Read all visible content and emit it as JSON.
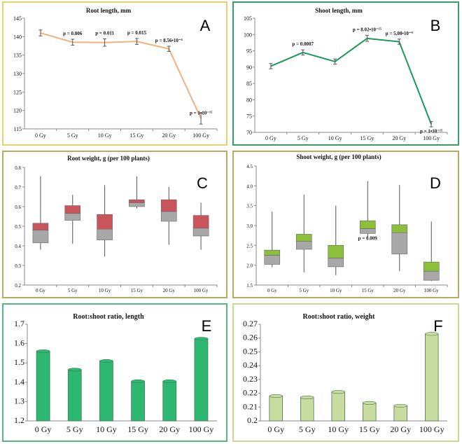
{
  "colors": {
    "root_line": "#f2b27c",
    "shoot_line": "#1a9a5a",
    "root_box_upper": "#c9545a",
    "shoot_box_upper": "#8cbf3a",
    "box_lower": "#a8a8a8",
    "bar_green": "#2db872",
    "bar_lightgreen": "#c9dca0"
  },
  "chart_data": [
    {
      "id": "A",
      "type": "line",
      "panel_letter": "A",
      "title": "Root length, mm",
      "categories": [
        "0 Gy",
        "5 Gy",
        "10 Gy",
        "15 Gy",
        "20 Gy",
        "100 Gy"
      ],
      "values": [
        141,
        138.5,
        138.4,
        138.7,
        136.7,
        117.8
      ],
      "errors": [
        0.8,
        0.8,
        1.0,
        0.8,
        0.7,
        1.5
      ],
      "ylim": [
        115,
        145
      ],
      "yticks": [
        "115",
        "120",
        "125",
        "130",
        "135",
        "140",
        "145"
      ],
      "annotations": [
        {
          "cat": 1,
          "label": "p = 0.006"
        },
        {
          "cat": 2,
          "label": "p = 0.011"
        },
        {
          "cat": 3,
          "label": "p = 0.015"
        },
        {
          "cat": 4,
          "label": "p = 8.56•10⁻⁶"
        },
        {
          "cat": 5,
          "label": "p = 1•10⁻¹⁵"
        }
      ]
    },
    {
      "id": "B",
      "type": "line",
      "panel_letter": "B",
      "title": "Shoot length, mm",
      "categories": [
        "0 Gy",
        "5 Gy",
        "10 Gy",
        "15 Gy",
        "20 Gy",
        "100 Gy"
      ],
      "values": [
        90.3,
        94.5,
        91.7,
        98.8,
        97.8,
        72.5
      ],
      "errors": [
        0.8,
        0.8,
        0.8,
        0.9,
        0.8,
        0.8
      ],
      "ylim": [
        70,
        105
      ],
      "yticks": [
        "70",
        "75",
        "80",
        "85",
        "90",
        "95",
        "100",
        "105"
      ],
      "annotations": [
        {
          "cat": 1,
          "label": "p = 0.0007"
        },
        {
          "cat": 3,
          "label": "p = 8.02•10⁻¹⁵"
        },
        {
          "cat": 4,
          "label": "p = 5.08•10⁻⁹"
        },
        {
          "cat": 5,
          "label": "p = 1•10⁻¹⁵"
        }
      ]
    },
    {
      "id": "C",
      "type": "box",
      "panel_letter": "C",
      "title": "Root weight, g (per 100 plants)",
      "categories": [
        "0 Gy",
        "5 Gy",
        "10 Gy",
        "15 Gy",
        "20 Gy",
        "100 Gy"
      ],
      "boxes": [
        {
          "min": 0.38,
          "q1": 0.415,
          "median": 0.48,
          "q3": 0.515,
          "max": 0.755
        },
        {
          "min": 0.41,
          "q1": 0.53,
          "median": 0.565,
          "q3": 0.605,
          "max": 0.66
        },
        {
          "min": 0.345,
          "q1": 0.43,
          "median": 0.485,
          "q3": 0.56,
          "max": 0.71
        },
        {
          "min": 0.59,
          "q1": 0.6,
          "median": 0.62,
          "q3": 0.635,
          "max": 0.755
        },
        {
          "min": 0.405,
          "q1": 0.525,
          "median": 0.575,
          "q3": 0.635,
          "max": 0.7
        },
        {
          "min": 0.38,
          "q1": 0.45,
          "median": 0.49,
          "q3": 0.555,
          "max": 0.62
        }
      ],
      "ylim": [
        0.2,
        0.8
      ],
      "yticks": [
        "0.2",
        "0.3",
        "0.4",
        "0.5",
        "0.6",
        "0.7",
        "0.8"
      ],
      "annotations": []
    },
    {
      "id": "D",
      "type": "box",
      "panel_letter": "D",
      "title": "Shoot weight, g (per 100 plants)",
      "categories": [
        "0 Gy",
        "5 Gy",
        "10 Gy",
        "15 Gy",
        "20 Gy",
        "100 Gy"
      ],
      "boxes": [
        {
          "min": 1.95,
          "q1": 2.02,
          "median": 2.25,
          "q3": 2.38,
          "max": 3.35
        },
        {
          "min": 1.82,
          "q1": 2.4,
          "median": 2.6,
          "q3": 2.78,
          "max": 3.78
        },
        {
          "min": 1.75,
          "q1": 1.96,
          "median": 2.18,
          "q3": 2.5,
          "max": 3.5
        },
        {
          "min": 2.7,
          "q1": 2.8,
          "median": 2.92,
          "q3": 3.12,
          "max": 4.12
        },
        {
          "min": 1.85,
          "q1": 2.28,
          "median": 2.82,
          "q3": 3.02,
          "max": 4.02
        },
        {
          "min": 1.6,
          "q1": 1.62,
          "median": 1.85,
          "q3": 2.08,
          "max": 3.1
        }
      ],
      "ylim": [
        1.5,
        4.5
      ],
      "yticks": [
        "1.5",
        "2.0",
        "2.5",
        "3.0",
        "3.5",
        "4.0",
        "4.5"
      ],
      "annotations": [
        {
          "cat": 3,
          "label": "p = 0.009"
        }
      ]
    },
    {
      "id": "E",
      "type": "bar",
      "panel_letter": "E",
      "title": "Root:shoot ratio, length",
      "categories": [
        "0 Gy",
        "5 Gy",
        "10 Gy",
        "15 Gy",
        "20 Gy",
        "100 Gy"
      ],
      "values": [
        1.56,
        1.465,
        1.51,
        1.405,
        1.405,
        1.625
      ],
      "ylim": [
        1.2,
        1.7
      ],
      "yticks": [
        "1.2",
        "1.3",
        "1.4",
        "1.5",
        "1.6",
        "1.7"
      ],
      "annotations": []
    },
    {
      "id": "F",
      "type": "bar",
      "panel_letter": "F",
      "title": "Root:shoot ratio, weight",
      "categories": [
        "0 Gy",
        "5 Gy",
        "10 Gy",
        "15 Gy",
        "20 Gy",
        "100 Gy"
      ],
      "values": [
        0.218,
        0.217,
        0.221,
        0.213,
        0.211,
        0.263
      ],
      "ylim": [
        0.2,
        0.27
      ],
      "yticks": [
        "0.2",
        "0.21",
        "0.22",
        "0.23",
        "0.24",
        "0.25",
        "0.26",
        "0.27"
      ],
      "annotations": []
    }
  ]
}
